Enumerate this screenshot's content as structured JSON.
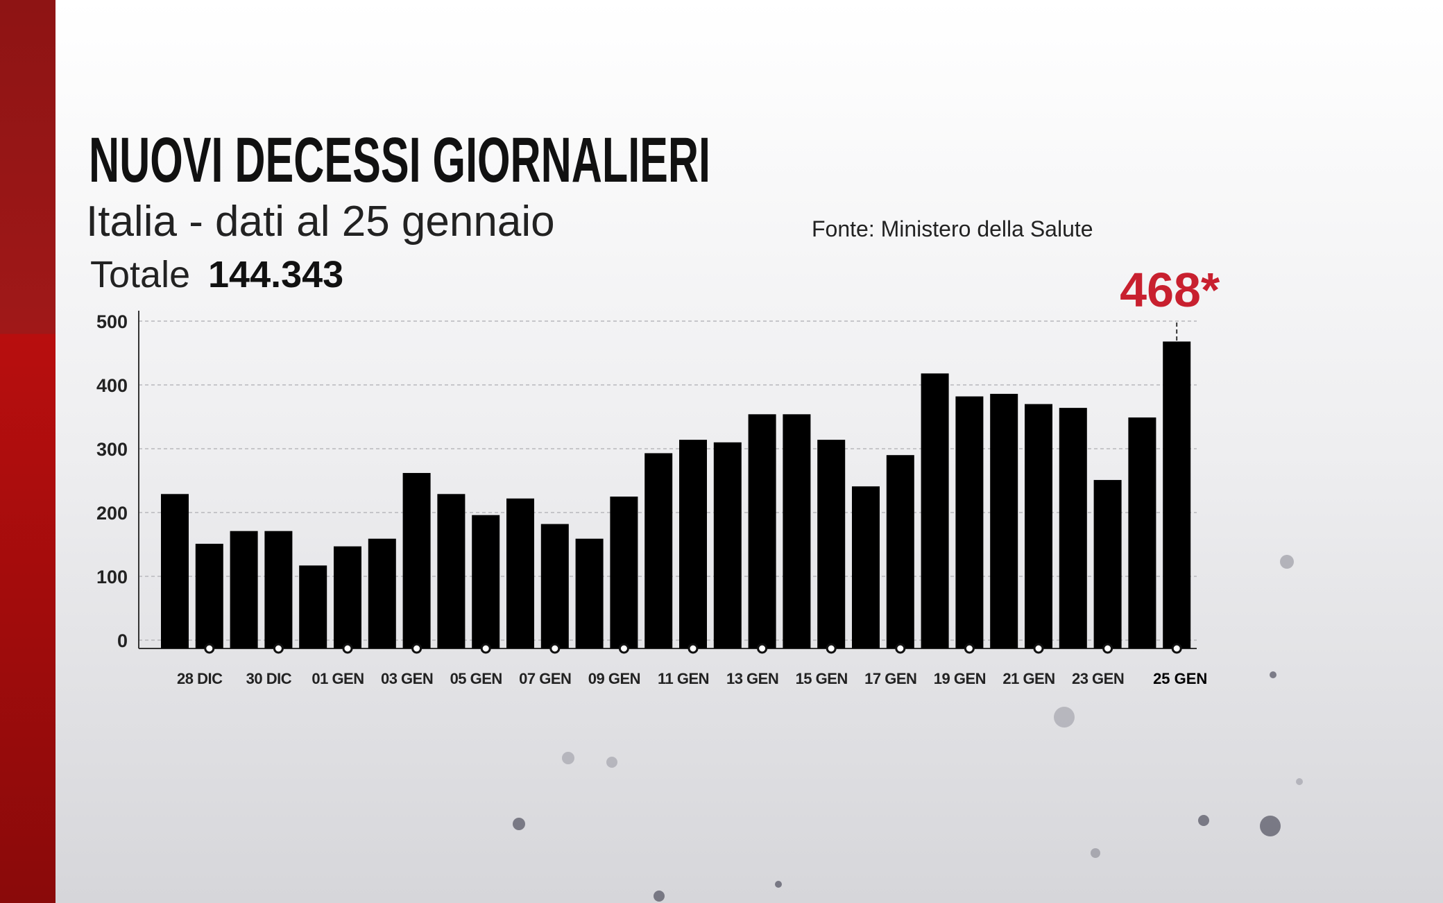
{
  "chart_data": {
    "type": "bar",
    "title": "NUOVI DECESSI GIORNALIERI",
    "subtitle": "Italia - dati al 25 gennaio",
    "source": "Fonte: Ministero della Salute",
    "total_label": "Totale",
    "total": "144.343",
    "categories": [
      null,
      "28 DIC",
      null,
      "30 DIC",
      null,
      "01 GEN",
      null,
      "03 GEN",
      null,
      "05 GEN",
      null,
      "07 GEN",
      null,
      "09 GEN",
      null,
      "11 GEN",
      null,
      "13 GEN",
      null,
      "15 GEN",
      null,
      "17 GEN",
      null,
      "19 GEN",
      null,
      "21 GEN",
      null,
      "23 GEN",
      null,
      "25 GEN"
    ],
    "values": [
      229,
      151,
      171,
      171,
      117,
      147,
      159,
      262,
      229,
      196,
      222,
      182,
      159,
      225,
      293,
      314,
      310,
      354,
      354,
      314,
      241,
      290,
      418,
      382,
      386,
      370,
      364,
      251,
      349,
      468
    ],
    "value_labels": [
      null,
      null,
      null,
      null,
      null,
      null,
      null,
      null,
      null,
      null,
      null,
      null,
      null,
      null,
      null,
      null,
      null,
      null,
      null,
      null,
      null,
      null,
      null,
      null,
      null,
      null,
      null,
      null,
      null,
      "468*"
    ],
    "color": "#000000",
    "highlight_color": "#c8202f",
    "ylim": [
      0,
      500
    ],
    "yticks": [
      0,
      100,
      200,
      300,
      400,
      500
    ],
    "grid": true
  }
}
